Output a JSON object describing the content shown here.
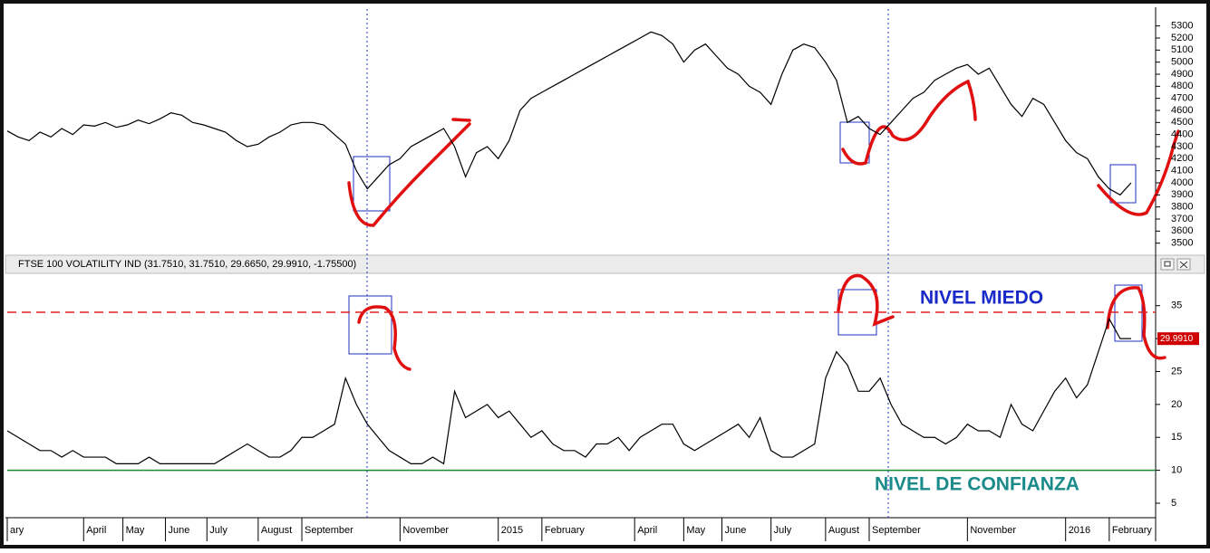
{
  "chart_data": [
    {
      "type": "line",
      "series": [
        {
          "color": "#000000",
          "values": [
            4430,
            4380,
            4350,
            4420,
            4380,
            4450,
            4400,
            4480,
            4470,
            4500,
            4460,
            4480,
            4520,
            4490,
            4530,
            4580,
            4560,
            4500,
            4480,
            4450,
            4420,
            4350,
            4300,
            4320,
            4380,
            4420,
            4480,
            4500,
            4500,
            4480,
            4400,
            4320,
            4100,
            3950,
            4050,
            4150,
            4200,
            4300,
            4350,
            4400,
            4450,
            4300,
            4050,
            4250,
            4300,
            4200,
            4350,
            4600,
            4700,
            4750,
            4800,
            4850,
            4900,
            4950,
            5000,
            5050,
            5100,
            5150,
            5200,
            5250,
            5220,
            5150,
            5000,
            5100,
            5150,
            5050,
            4950,
            4900,
            4800,
            4750,
            4650,
            4900,
            5100,
            5150,
            5120,
            5000,
            4850,
            4500,
            4550,
            4450,
            4400,
            4500,
            4600,
            4700,
            4750,
            4850,
            4900,
            4950,
            4980,
            4900,
            4950,
            4800,
            4650,
            4550,
            4700,
            4650,
            4500,
            4350,
            4250,
            4200,
            4050,
            3950,
            3900,
            4000
          ]
        }
      ],
      "xlim": [
        0,
        105
      ],
      "ylim": [
        3430,
        5440
      ],
      "yticks": [
        3500,
        3600,
        3700,
        3800,
        3900,
        4000,
        4100,
        4200,
        4300,
        4400,
        4500,
        4600,
        4700,
        4800,
        4900,
        5000,
        5100,
        5200,
        5300
      ]
    },
    {
      "type": "line",
      "title": "FTSE 100 VOLATILITY IND (31.7510, 31.7510, 29.6650, 29.9910, -1.75500)",
      "series": [
        {
          "color": "#000000",
          "values": [
            16,
            15,
            14,
            13,
            13,
            12,
            13,
            12,
            12,
            12,
            11,
            11,
            11,
            12,
            11,
            11,
            11,
            11,
            11,
            11,
            12,
            13,
            14,
            13,
            12,
            12,
            13,
            15,
            15,
            16,
            17,
            24,
            20,
            17,
            15,
            13,
            12,
            11,
            11,
            12,
            11,
            22,
            18,
            19,
            20,
            18,
            19,
            17,
            15,
            16,
            14,
            13,
            13,
            12,
            14,
            14,
            15,
            13,
            15,
            16,
            17,
            17,
            14,
            13,
            14,
            15,
            16,
            17,
            15,
            18,
            13,
            12,
            12,
            13,
            14,
            24,
            28,
            26,
            22,
            22,
            24,
            20,
            17,
            16,
            15,
            15,
            14,
            15,
            17,
            16,
            16,
            15,
            20,
            17,
            16,
            19,
            22,
            24,
            21,
            23,
            28,
            33,
            30,
            30
          ]
        }
      ],
      "last_value": {
        "value": 29.991,
        "label": "29.9910"
      },
      "reference_lines": [
        {
          "value": 34,
          "label": "NIVEL MIEDO",
          "color": "#e02020"
        },
        {
          "value": 10,
          "label": "NIVEL DE CONFIANZA",
          "color": "#1a8a2a"
        }
      ],
      "xlim": [
        0,
        105
      ],
      "xticks": [
        {
          "value": 0,
          "label": "ary"
        },
        {
          "value": 7,
          "label": "April"
        },
        {
          "value": 10.6,
          "label": "May"
        },
        {
          "value": 14.5,
          "label": "June"
        },
        {
          "value": 18.3,
          "label": "July"
        },
        {
          "value": 23,
          "label": "August"
        },
        {
          "value": 27,
          "label": "September"
        },
        {
          "value": 36,
          "label": "November"
        },
        {
          "value": 45,
          "label": "2015"
        },
        {
          "value": 49,
          "label": "February"
        },
        {
          "value": 57.5,
          "label": "April"
        },
        {
          "value": 62,
          "label": "May"
        },
        {
          "value": 65.5,
          "label": "June"
        },
        {
          "value": 70,
          "label": "July"
        },
        {
          "value": 75,
          "label": "August"
        },
        {
          "value": 79,
          "label": "September"
        },
        {
          "value": 88,
          "label": "November"
        },
        {
          "value": 97,
          "label": "2016"
        },
        {
          "value": 101,
          "label": "February"
        }
      ],
      "ylim": [
        2.8,
        39.5
      ],
      "yticks": [
        5,
        10,
        15,
        20,
        25,
        30,
        35
      ]
    }
  ]
}
